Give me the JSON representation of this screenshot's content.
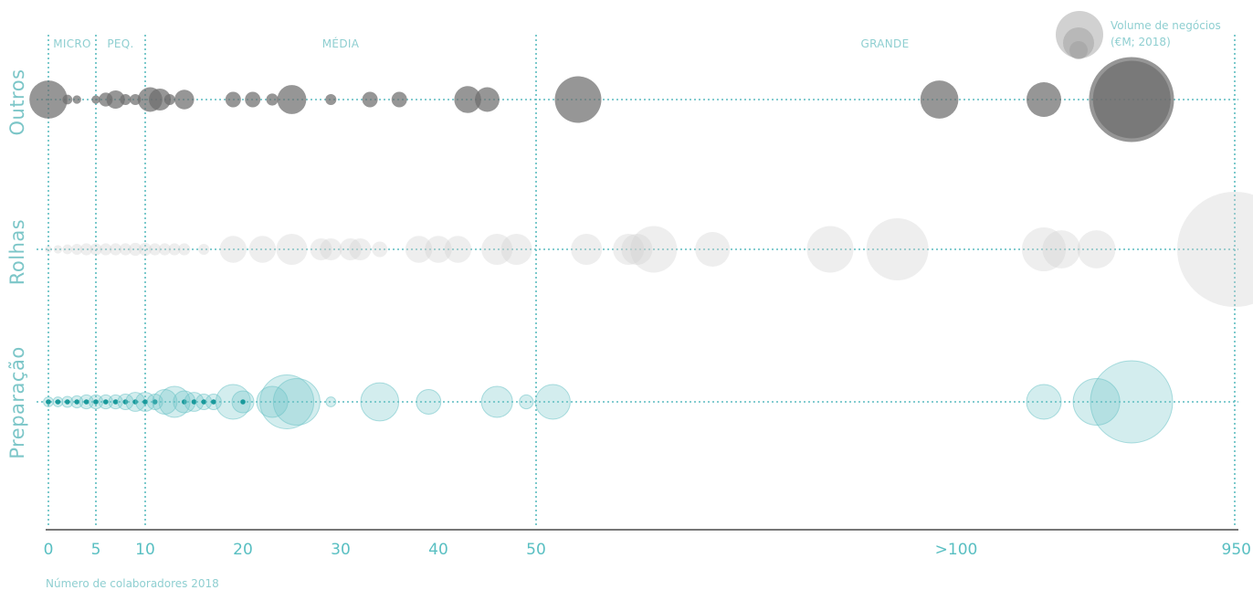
{
  "chart_data": {
    "type": "scatter",
    "xlabel": "Número de colaboradores 2018",
    "x_ticks": [
      "0",
      "5",
      "10",
      "20",
      "30",
      "40",
      "50",
      ">100",
      "950"
    ],
    "size_legend": {
      "line1": "Volume de negócios",
      "line2": "(€M; 2018)"
    },
    "bands": [
      "MICRO",
      "PEQ.",
      "MÉDIA",
      "GRANDE"
    ],
    "rows": [
      "Outros",
      "Rolhas",
      "Preparação"
    ],
    "colors": {
      "Outros": "#6d6d6d",
      "Rolhas": "#cfcfcf",
      "Preparação": "#6cc3c6",
      "core": "#1a9a9c",
      "axis": "#777777",
      "guide": "#5bbcc0"
    },
    "series": [
      {
        "name": "Outros",
        "points": [
          {
            "x": 0,
            "v": 6
          },
          {
            "x": 2,
            "v": 0.4
          },
          {
            "x": 3,
            "v": 0.3
          },
          {
            "x": 5,
            "v": 0.3
          },
          {
            "x": 6,
            "v": 0.8
          },
          {
            "x": 7,
            "v": 1.4
          },
          {
            "x": 8,
            "v": 0.5
          },
          {
            "x": 9,
            "v": 0.5
          },
          {
            "x": 10.5,
            "v": 2.5
          },
          {
            "x": 11.5,
            "v": 2
          },
          {
            "x": 12.5,
            "v": 0.5
          },
          {
            "x": 14,
            "v": 1.6
          },
          {
            "x": 19,
            "v": 1
          },
          {
            "x": 21,
            "v": 1
          },
          {
            "x": 23,
            "v": 0.6
          },
          {
            "x": 25,
            "v": 3.5
          },
          {
            "x": 29,
            "v": 0.5
          },
          {
            "x": 33,
            "v": 1
          },
          {
            "x": 36,
            "v": 1
          },
          {
            "x": 43,
            "v": 3
          },
          {
            "x": 45,
            "v": 2.5
          },
          {
            "x": 55,
            "v": 9
          },
          {
            "x": 98,
            "v": 6
          },
          {
            "x": 105,
            "v": 5
          },
          {
            "x": 110,
            "v": 30
          },
          {
            "x": 112,
            "v": 25
          }
        ]
      },
      {
        "name": "Rolhas",
        "points": [
          {
            "x": 0,
            "v": 0.2
          },
          {
            "x": 1,
            "v": 0.3
          },
          {
            "x": 2,
            "v": 0.4
          },
          {
            "x": 3,
            "v": 0.5
          },
          {
            "x": 4,
            "v": 0.6
          },
          {
            "x": 5,
            "v": 0.6
          },
          {
            "x": 6,
            "v": 0.6
          },
          {
            "x": 7,
            "v": 0.6
          },
          {
            "x": 8,
            "v": 0.6
          },
          {
            "x": 9,
            "v": 0.7
          },
          {
            "x": 10,
            "v": 0.7
          },
          {
            "x": 11,
            "v": 0.6
          },
          {
            "x": 12,
            "v": 0.6
          },
          {
            "x": 13,
            "v": 0.6
          },
          {
            "x": 14,
            "v": 0.6
          },
          {
            "x": 16,
            "v": 0.5
          },
          {
            "x": 19,
            "v": 3
          },
          {
            "x": 22,
            "v": 3
          },
          {
            "x": 25,
            "v": 4
          },
          {
            "x": 28,
            "v": 2
          },
          {
            "x": 29,
            "v": 2
          },
          {
            "x": 31,
            "v": 2
          },
          {
            "x": 32,
            "v": 2
          },
          {
            "x": 34,
            "v": 1
          },
          {
            "x": 38,
            "v": 3
          },
          {
            "x": 40,
            "v": 3
          },
          {
            "x": 42,
            "v": 3
          },
          {
            "x": 46,
            "v": 4
          },
          {
            "x": 48,
            "v": 4
          },
          {
            "x": 56,
            "v": 4
          },
          {
            "x": 61,
            "v": 4
          },
          {
            "x": 62,
            "v": 4
          },
          {
            "x": 64,
            "v": 9
          },
          {
            "x": 71,
            "v": 5
          },
          {
            "x": 85,
            "v": 9
          },
          {
            "x": 93,
            "v": 16
          },
          {
            "x": 105,
            "v": 8
          },
          {
            "x": 106,
            "v": 6
          },
          {
            "x": 108,
            "v": 6
          },
          {
            "x": 950,
            "v": 55
          }
        ]
      },
      {
        "name": "Preparação",
        "points": [
          {
            "x": 0,
            "v": 0.4
          },
          {
            "x": 1,
            "v": 0.4
          },
          {
            "x": 2,
            "v": 0.5
          },
          {
            "x": 3,
            "v": 0.6
          },
          {
            "x": 4,
            "v": 0.8
          },
          {
            "x": 5,
            "v": 0.8
          },
          {
            "x": 6,
            "v": 0.8
          },
          {
            "x": 7,
            "v": 0.8
          },
          {
            "x": 8,
            "v": 1
          },
          {
            "x": 9,
            "v": 1.5
          },
          {
            "x": 10,
            "v": 1.5
          },
          {
            "x": 11,
            "v": 1
          },
          {
            "x": 12,
            "v": 2.5
          },
          {
            "x": 13,
            "v": 4
          },
          {
            "x": 14,
            "v": 2
          },
          {
            "x": 15,
            "v": 1.5
          },
          {
            "x": 16,
            "v": 1
          },
          {
            "x": 17,
            "v": 1
          },
          {
            "x": 19,
            "v": 5
          },
          {
            "x": 20,
            "v": 2
          },
          {
            "x": 23,
            "v": 4
          },
          {
            "x": 24.5,
            "v": 12
          },
          {
            "x": 25.5,
            "v": 9
          },
          {
            "x": 29,
            "v": 0.4
          },
          {
            "x": 34,
            "v": 6
          },
          {
            "x": 39,
            "v": 2.5
          },
          {
            "x": 46,
            "v": 4
          },
          {
            "x": 49,
            "v": 0.8
          },
          {
            "x": 52,
            "v": 5
          },
          {
            "x": 105,
            "v": 5
          },
          {
            "x": 108,
            "v": 9
          },
          {
            "x": 110,
            "v": 28
          }
        ]
      }
    ]
  }
}
